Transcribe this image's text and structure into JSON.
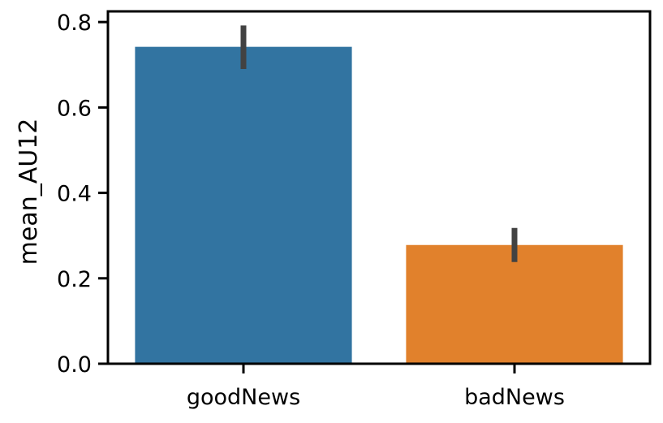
{
  "chart_data": {
    "type": "bar",
    "categories": [
      "goodNews",
      "badNews"
    ],
    "values": [
      0.742,
      0.278
    ],
    "errors": [
      {
        "low": 0.69,
        "high": 0.792
      },
      {
        "low": 0.238,
        "high": 0.318
      }
    ],
    "colors": [
      "#3274a1",
      "#e1812c"
    ],
    "error_color": "#424242",
    "title": "",
    "xlabel": "",
    "ylabel": "mean_AU12",
    "ylim": [
      0,
      0.825
    ],
    "yticks": [
      0.0,
      0.2,
      0.4,
      0.6,
      0.8
    ],
    "ytick_labels": [
      "0.0",
      "0.2",
      "0.4",
      "0.6",
      "0.8"
    ],
    "grid": false,
    "legend": "none"
  }
}
